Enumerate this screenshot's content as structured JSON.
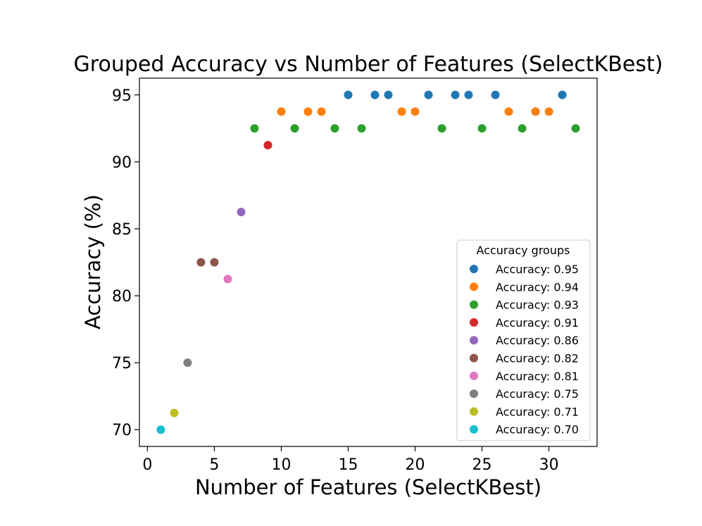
{
  "chart_data": {
    "type": "scatter",
    "title": "Grouped Accuracy vs Number of Features (SelectKBest)",
    "xlabel": "Number of Features (SelectKBest)",
    "ylabel": "Accuracy (%)",
    "xlim": [
      -0.6,
      33.6
    ],
    "ylim": [
      68.75,
      96.25
    ],
    "xticks": [
      0,
      5,
      10,
      15,
      20,
      25,
      30
    ],
    "yticks": [
      70,
      75,
      80,
      85,
      90,
      95
    ],
    "grid": false,
    "legend": {
      "title": "Accuracy groups",
      "placement": "lower-right"
    },
    "series": [
      {
        "name": "Accuracy: 0.95",
        "color": "#1f77b4",
        "points": [
          [
            15,
            95
          ],
          [
            17,
            95
          ],
          [
            18,
            95
          ],
          [
            21,
            95
          ],
          [
            23,
            95
          ],
          [
            24,
            95
          ],
          [
            26,
            95
          ],
          [
            31,
            95
          ]
        ]
      },
      {
        "name": "Accuracy: 0.94",
        "color": "#ff7f0e",
        "points": [
          [
            10,
            93.75
          ],
          [
            12,
            93.75
          ],
          [
            13,
            93.75
          ],
          [
            19,
            93.75
          ],
          [
            20,
            93.75
          ],
          [
            27,
            93.75
          ],
          [
            29,
            93.75
          ],
          [
            30,
            93.75
          ]
        ]
      },
      {
        "name": "Accuracy: 0.93",
        "color": "#2ca02c",
        "points": [
          [
            8,
            92.5
          ],
          [
            11,
            92.5
          ],
          [
            14,
            92.5
          ],
          [
            16,
            92.5
          ],
          [
            22,
            92.5
          ],
          [
            25,
            92.5
          ],
          [
            28,
            92.5
          ],
          [
            32,
            92.5
          ]
        ]
      },
      {
        "name": "Accuracy: 0.91",
        "color": "#d62728",
        "points": [
          [
            9,
            91.25
          ]
        ]
      },
      {
        "name": "Accuracy: 0.86",
        "color": "#9467bd",
        "points": [
          [
            7,
            86.25
          ]
        ]
      },
      {
        "name": "Accuracy: 0.82",
        "color": "#8c564b",
        "points": [
          [
            4,
            82.5
          ],
          [
            5,
            82.5
          ]
        ]
      },
      {
        "name": "Accuracy: 0.81",
        "color": "#e377c2",
        "points": [
          [
            6,
            81.25
          ]
        ]
      },
      {
        "name": "Accuracy: 0.75",
        "color": "#7f7f7f",
        "points": [
          [
            3,
            75
          ]
        ]
      },
      {
        "name": "Accuracy: 0.71",
        "color": "#bcbd22",
        "points": [
          [
            2,
            71.25
          ]
        ]
      },
      {
        "name": "Accuracy: 0.70",
        "color": "#17becf",
        "points": [
          [
            1,
            70
          ]
        ]
      }
    ]
  }
}
